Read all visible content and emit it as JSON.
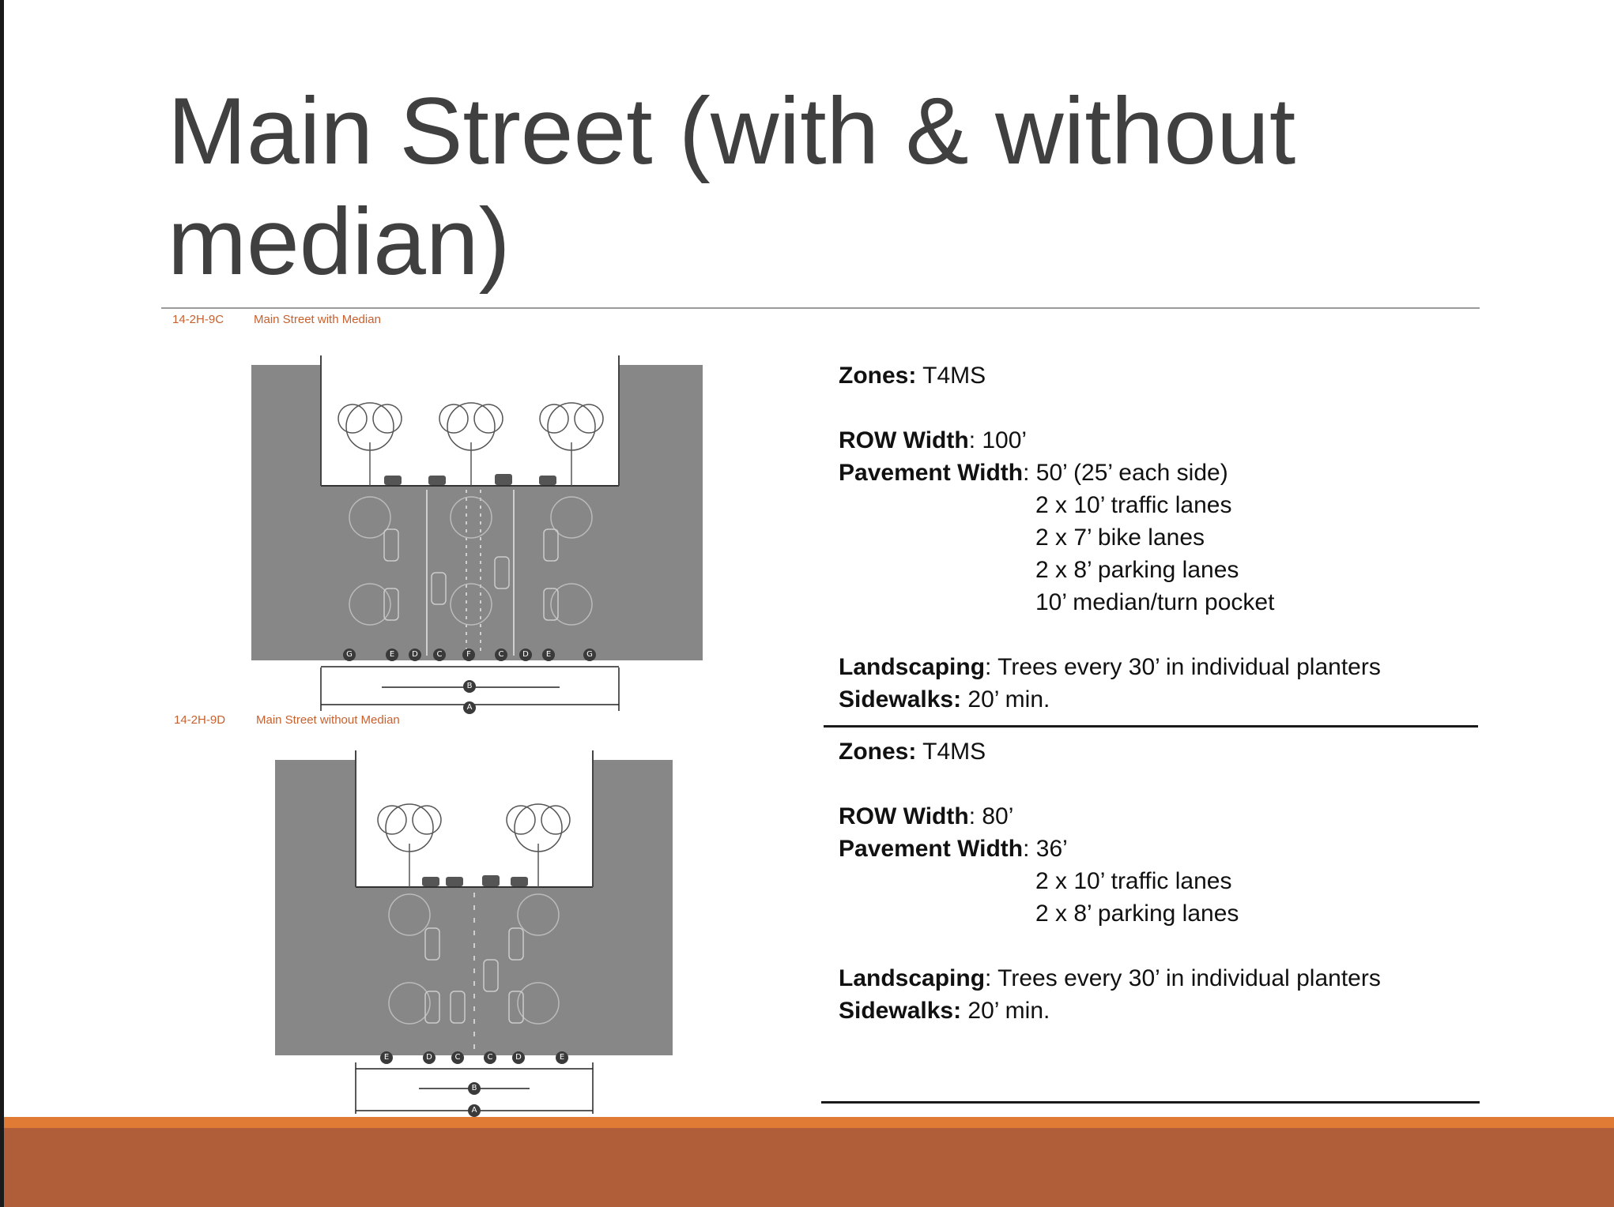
{
  "slide": {
    "title": "Main Street (with & without median)"
  },
  "figures": [
    {
      "code": "14-2H-9C",
      "caption": "Main Street with Median",
      "dimension_markers": [
        "G",
        "E",
        "D",
        "C",
        "F",
        "C",
        "D",
        "E",
        "G"
      ],
      "total_markers": [
        "B",
        "A"
      ]
    },
    {
      "code": "14-2H-9D",
      "caption": "Main Street without Median",
      "dimension_markers": [
        "E",
        "D",
        "C",
        "C",
        "D",
        "E"
      ],
      "total_markers": [
        "B",
        "A"
      ]
    }
  ],
  "specs": [
    {
      "zones_label": "Zones:",
      "zones_value": "T4MS",
      "row_label": "ROW Width",
      "row_value": ": 100’",
      "pavement_label": "Pavement Width",
      "pavement_value": ": 50’ (25’ each side)",
      "lanes": [
        "2 x 10’ traffic lanes",
        "2 x 7’ bike lanes",
        "2 x 8’ parking lanes",
        "10’ median/turn pocket"
      ],
      "landscaping_label": "Landscaping",
      "landscaping_value": ": Trees every 30’ in individual planters",
      "sidewalks_label": "Sidewalks:",
      "sidewalks_value": "20’ min."
    },
    {
      "zones_label": "Zones:",
      "zones_value": "T4MS",
      "row_label": "ROW Width",
      "row_value": ": 80’",
      "pavement_label": "Pavement Width",
      "pavement_value": ": 36’",
      "lanes": [
        "2 x 10’ traffic lanes",
        "2 x 8’ parking lanes"
      ],
      "landscaping_label": "Landscaping",
      "landscaping_value": ": Trees every 30’ in individual planters",
      "sidewalks_label": "Sidewalks:",
      "sidewalks_value": "20’ min."
    }
  ],
  "colors": {
    "title": "#404040",
    "caption": "#c8602e",
    "building": "#878787",
    "footer": "#b05d3a",
    "footer_accent": "#e07b35"
  }
}
